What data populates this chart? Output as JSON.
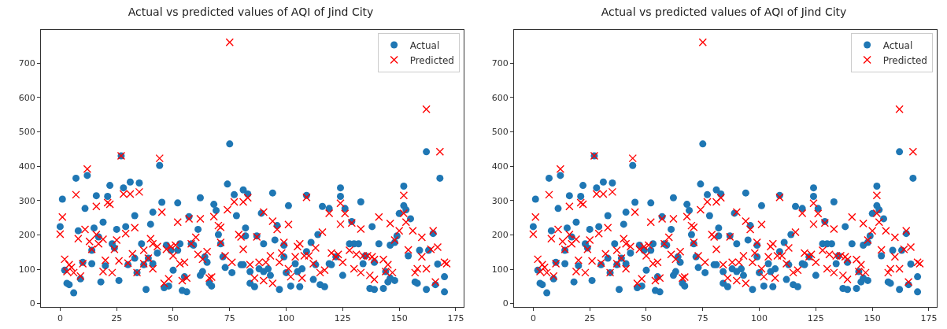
{
  "chart_data": [
    {
      "type": "scatter",
      "title": "Actual vs predicted values of AQI of Jind City",
      "xlim": [
        -8.5,
        178.5
      ],
      "ylim": [
        -10,
        797
      ],
      "xticks": [
        0,
        25,
        50,
        75,
        100,
        125,
        150,
        175
      ],
      "yticks": [
        0,
        100,
        200,
        300,
        400,
        500,
        600,
        700
      ],
      "grid": false,
      "legend": "top right",
      "series": [
        {
          "name": "Actual",
          "color": "#1f77b4",
          "marker": "circle",
          "x": [
            0,
            1,
            2,
            3,
            4,
            6,
            7,
            8,
            9,
            10,
            11,
            12,
            14,
            14,
            15,
            16,
            17,
            18,
            19,
            20,
            21,
            22,
            23,
            24,
            25,
            26,
            27,
            28,
            29,
            30,
            31,
            33,
            33,
            34,
            35,
            36,
            37,
            38,
            39,
            40,
            41,
            41,
            43,
            44,
            45,
            46,
            47,
            48,
            49,
            50,
            52,
            52,
            53,
            54,
            55,
            56,
            57,
            58,
            59,
            61,
            62,
            62,
            63,
            64,
            65,
            66,
            67,
            68,
            69,
            70,
            71,
            72,
            73,
            74,
            75,
            76,
            77,
            78,
            80,
            81,
            81,
            83,
            82,
            82,
            84,
            86,
            84,
            87,
            88,
            89,
            90,
            90,
            92,
            93,
            94,
            95,
            96,
            97,
            99,
            99,
            100,
            101,
            102,
            104,
            105,
            106,
            107,
            109,
            109,
            111,
            112,
            113,
            114,
            115,
            117,
            116,
            119,
            119,
            120,
            122,
            124,
            124,
            125,
            126,
            128,
            129,
            130,
            132,
            133,
            134,
            135,
            137,
            138,
            139,
            139,
            141,
            143,
            144,
            145,
            146,
            146,
            148,
            148,
            149,
            150,
            152,
            152,
            153,
            154,
            155,
            157,
            158,
            159,
            162,
            162,
            163,
            165,
            166,
            167,
            168,
            170,
            170
          ],
          "values": [
            224,
            304,
            97,
            59,
            55,
            31,
            365,
            212,
            72,
            120,
            277,
            373,
            155,
            116,
            220,
            314,
            194,
            63,
            237,
            110,
            312,
            344,
            174,
            162,
            216,
            67,
            430,
            337,
            224,
            113,
            354,
            256,
            132,
            90,
            351,
            174,
            113,
            41,
            132,
            231,
            266,
            116,
            147,
            402,
            295,
            46,
            170,
            51,
            155,
            97,
            293,
            155,
            174,
            38,
            78,
            34,
            253,
            174,
            170,
            216,
            82,
            308,
            93,
            136,
            120,
            59,
            51,
            289,
            271,
            201,
            174,
            136,
            105,
            348,
            465,
            90,
            317,
            256,
            113,
            331,
            113,
            319,
            220,
            197,
            59,
            49,
            93,
            197,
            101,
            263,
            174,
            93,
            101,
            82,
            322,
            185,
            227,
            41,
            170,
            136,
            90,
            285,
            51,
            116,
            93,
            49,
            101,
            315,
            151,
            178,
            70,
            113,
            201,
            55,
            49,
            283,
            277,
            116,
            113,
            136,
            337,
            312,
            82,
            277,
            174,
            239,
            174,
            174,
            296,
            116,
            139,
            44,
            224,
            41,
            120,
            174,
            44,
            93,
            63,
            170,
            74,
            178,
            67,
            197,
            262,
            342,
            285,
            273,
            139,
            247,
            63,
            59,
            155,
            41,
            442,
            155,
            204,
            55,
            115,
            365,
            34,
            78
          ]
        },
        {
          "name": "Predicted",
          "color": "#ff0000",
          "marker": "cross",
          "x": [
            0,
            1,
            2,
            3,
            4,
            5,
            6,
            7,
            8,
            9,
            10,
            11,
            12,
            13,
            14,
            16,
            16,
            17,
            19,
            19,
            20,
            21,
            22,
            23,
            24,
            25,
            26,
            27,
            28,
            29,
            30,
            31,
            33,
            32,
            34,
            35,
            37,
            37,
            39,
            40,
            41,
            41,
            43,
            44,
            45,
            46,
            48,
            47,
            49,
            50,
            51,
            52,
            53,
            54,
            55,
            56,
            57,
            58,
            60,
            62,
            61,
            63,
            65,
            66,
            67,
            68,
            70,
            71,
            71,
            73,
            74,
            75,
            76,
            77,
            79,
            80,
            81,
            81,
            83,
            84,
            86,
            87,
            88,
            90,
            90,
            91,
            93,
            94,
            94,
            96,
            97,
            98,
            99,
            101,
            101,
            102,
            104,
            105,
            106,
            107,
            108,
            109,
            110,
            112,
            113,
            115,
            116,
            117,
            119,
            120,
            122,
            123,
            124,
            124,
            125,
            126,
            128,
            129,
            130,
            131,
            133,
            133,
            134,
            136,
            137,
            138,
            139,
            139,
            141,
            143,
            144,
            145,
            146,
            147,
            148,
            150,
            152,
            152,
            153,
            154,
            156,
            157,
            158,
            160,
            160,
            162,
            162,
            164,
            165,
            166,
            167,
            168,
            170,
            171
          ],
          "values": [
            202,
            252,
            129,
            93,
            113,
            105,
            90,
            317,
            189,
            80,
            116,
            216,
            392,
            181,
            158,
            283,
            201,
            174,
            187,
            93,
            126,
            294,
            289,
            90,
            158,
            185,
            124,
            430,
            319,
            204,
            118,
            319,
            221,
            145,
            90,
            325,
            155,
            116,
            132,
            189,
            101,
            174,
            166,
            423,
            266,
            59,
            72,
            158,
            166,
            139,
            170,
            237,
            116,
            67,
            120,
            74,
            247,
            174,
            193,
            247,
            143,
            129,
            151,
            74,
            77,
            253,
            227,
            222,
            178,
            139,
            273,
            761,
            120,
            296,
            201,
            194,
            296,
            158,
            308,
            113,
            74,
            194,
            120,
            266,
            67,
            120,
            139,
            59,
            240,
            216,
            120,
            147,
            178,
            230,
            101,
            78,
            136,
            166,
            174,
            74,
            139,
            309,
            139,
            116,
            162,
            90,
            208,
            97,
            263,
            147,
            136,
            143,
            292,
            231,
            120,
            262,
            155,
            235,
            101,
            143,
            90,
            217,
            139,
            139,
            82,
            136,
            70,
            128,
            252,
            128,
            93,
            113,
            233,
            90,
            185,
            212,
            315,
            263,
            237,
            156,
            212,
            90,
            101,
            193,
            136,
            101,
            566,
            158,
            212,
            63,
            164,
            442,
            120,
            116
          ]
        }
      ]
    },
    {
      "type": "scatter",
      "title": "Actual vs predicted values of AQI of Jind City",
      "xlim": [
        -8.5,
        178.5
      ],
      "ylim": [
        -10,
        797
      ],
      "xticks": [
        0,
        25,
        50,
        75,
        100,
        125,
        150,
        175
      ],
      "yticks": [
        0,
        100,
        200,
        300,
        400,
        500,
        600,
        700
      ],
      "grid": false,
      "legend": "top right",
      "series": [
        {
          "name": "Actual",
          "color": "#1f77b4",
          "marker": "circle",
          "x": [
            0,
            1,
            2,
            3,
            4,
            6,
            7,
            8,
            9,
            10,
            11,
            12,
            14,
            14,
            15,
            16,
            17,
            18,
            19,
            20,
            21,
            22,
            23,
            24,
            25,
            26,
            27,
            28,
            29,
            30,
            31,
            33,
            33,
            34,
            35,
            36,
            37,
            38,
            39,
            40,
            41,
            41,
            43,
            44,
            45,
            46,
            47,
            48,
            49,
            50,
            52,
            52,
            53,
            54,
            55,
            56,
            57,
            58,
            59,
            61,
            62,
            62,
            63,
            64,
            65,
            66,
            67,
            68,
            69,
            70,
            71,
            72,
            73,
            74,
            75,
            76,
            77,
            78,
            80,
            81,
            81,
            83,
            82,
            82,
            84,
            86,
            84,
            87,
            88,
            89,
            90,
            90,
            92,
            93,
            94,
            95,
            96,
            97,
            99,
            99,
            100,
            101,
            102,
            104,
            105,
            106,
            107,
            109,
            109,
            111,
            112,
            113,
            114,
            115,
            117,
            116,
            119,
            119,
            120,
            122,
            124,
            124,
            125,
            126,
            128,
            129,
            130,
            132,
            133,
            134,
            135,
            137,
            138,
            139,
            139,
            141,
            143,
            144,
            145,
            146,
            146,
            148,
            148,
            149,
            150,
            152,
            152,
            153,
            154,
            155,
            157,
            158,
            159,
            162,
            162,
            163,
            165,
            166,
            167,
            168,
            170,
            170
          ],
          "values": [
            224,
            304,
            97,
            59,
            55,
            31,
            365,
            212,
            72,
            120,
            277,
            373,
            155,
            116,
            220,
            314,
            194,
            63,
            237,
            110,
            312,
            344,
            174,
            162,
            216,
            67,
            430,
            337,
            224,
            113,
            354,
            256,
            132,
            90,
            351,
            174,
            113,
            41,
            132,
            231,
            266,
            116,
            147,
            402,
            295,
            46,
            170,
            51,
            155,
            97,
            293,
            155,
            174,
            38,
            78,
            34,
            253,
            174,
            170,
            216,
            82,
            308,
            93,
            136,
            120,
            59,
            51,
            289,
            271,
            201,
            174,
            136,
            105,
            348,
            465,
            90,
            317,
            256,
            113,
            331,
            113,
            319,
            220,
            197,
            59,
            49,
            93,
            197,
            101,
            263,
            174,
            93,
            101,
            82,
            322,
            185,
            227,
            41,
            170,
            136,
            90,
            285,
            51,
            116,
            93,
            49,
            101,
            315,
            151,
            178,
            70,
            113,
            201,
            55,
            49,
            283,
            277,
            116,
            113,
            136,
            337,
            312,
            82,
            277,
            174,
            239,
            174,
            174,
            296,
            116,
            139,
            44,
            224,
            41,
            120,
            174,
            44,
            93,
            63,
            170,
            74,
            178,
            67,
            197,
            262,
            342,
            285,
            273,
            139,
            247,
            63,
            59,
            155,
            41,
            442,
            155,
            204,
            55,
            115,
            365,
            34,
            78
          ]
        },
        {
          "name": "Predicted",
          "color": "#ff0000",
          "marker": "cross",
          "x": [
            0,
            1,
            2,
            3,
            4,
            5,
            6,
            7,
            8,
            9,
            10,
            11,
            12,
            13,
            14,
            16,
            16,
            17,
            19,
            19,
            20,
            21,
            22,
            23,
            24,
            25,
            26,
            27,
            28,
            29,
            30,
            31,
            33,
            32,
            34,
            35,
            37,
            37,
            39,
            40,
            41,
            41,
            43,
            44,
            45,
            46,
            48,
            47,
            49,
            50,
            51,
            52,
            53,
            54,
            55,
            56,
            57,
            58,
            60,
            62,
            61,
            63,
            65,
            66,
            67,
            68,
            70,
            71,
            71,
            73,
            74,
            75,
            76,
            77,
            79,
            80,
            81,
            81,
            83,
            84,
            86,
            87,
            88,
            90,
            90,
            91,
            93,
            94,
            94,
            96,
            97,
            98,
            99,
            101,
            101,
            102,
            104,
            105,
            106,
            107,
            108,
            109,
            110,
            112,
            113,
            115,
            116,
            117,
            119,
            120,
            122,
            123,
            124,
            124,
            125,
            126,
            128,
            129,
            130,
            131,
            133,
            133,
            134,
            136,
            137,
            138,
            139,
            139,
            141,
            143,
            144,
            145,
            146,
            147,
            148,
            150,
            152,
            152,
            153,
            154,
            156,
            157,
            158,
            160,
            160,
            162,
            162,
            164,
            165,
            166,
            167,
            168,
            170,
            171
          ],
          "values": [
            202,
            252,
            129,
            93,
            113,
            105,
            90,
            317,
            189,
            80,
            116,
            216,
            392,
            181,
            158,
            283,
            201,
            174,
            187,
            93,
            126,
            294,
            289,
            90,
            158,
            185,
            124,
            430,
            319,
            204,
            118,
            319,
            221,
            145,
            90,
            325,
            155,
            116,
            132,
            189,
            101,
            174,
            166,
            423,
            266,
            59,
            72,
            158,
            166,
            139,
            170,
            237,
            116,
            67,
            120,
            74,
            247,
            174,
            193,
            247,
            143,
            129,
            151,
            74,
            77,
            253,
            227,
            222,
            178,
            139,
            273,
            761,
            120,
            296,
            201,
            194,
            296,
            158,
            308,
            113,
            74,
            194,
            120,
            266,
            67,
            120,
            139,
            59,
            240,
            216,
            120,
            147,
            178,
            230,
            101,
            78,
            136,
            166,
            174,
            74,
            139,
            309,
            139,
            116,
            162,
            90,
            208,
            97,
            263,
            147,
            136,
            143,
            292,
            231,
            120,
            262,
            155,
            235,
            101,
            143,
            90,
            217,
            139,
            139,
            82,
            136,
            70,
            128,
            252,
            128,
            93,
            113,
            233,
            90,
            185,
            212,
            315,
            263,
            237,
            156,
            212,
            90,
            101,
            193,
            136,
            101,
            566,
            158,
            212,
            63,
            164,
            442,
            120,
            116
          ]
        }
      ]
    }
  ]
}
